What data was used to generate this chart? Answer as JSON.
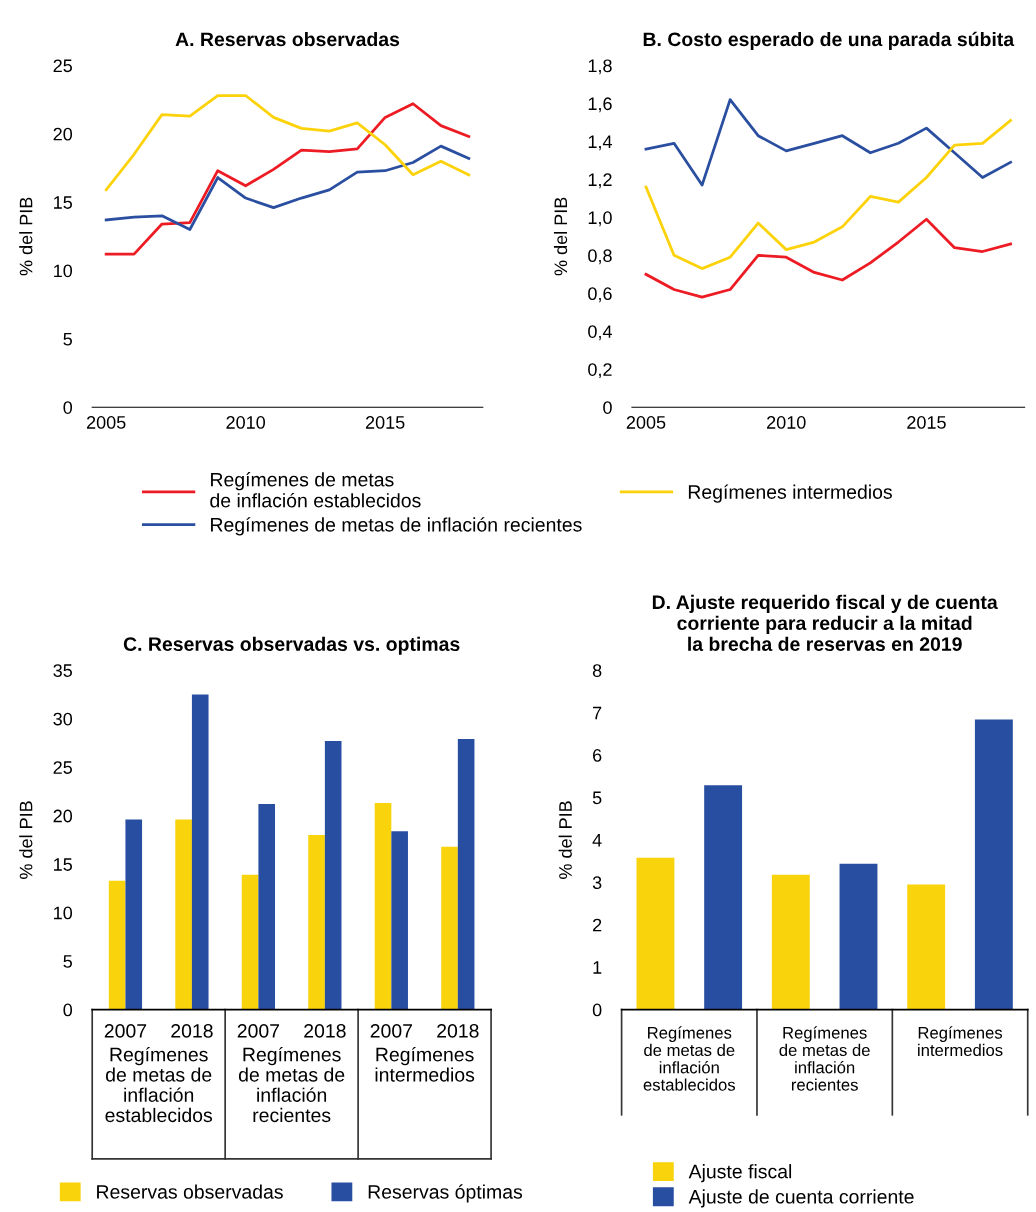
{
  "chart_data": [
    {
      "type": "line",
      "title": "A. Reservas observadas",
      "ylabel": "% del PIB",
      "x": [
        2005,
        2006,
        2007,
        2008,
        2009,
        2010,
        2011,
        2012,
        2013,
        2014,
        2015,
        2016,
        2017,
        2018
      ],
      "xlim": [
        2004.5,
        2018.5
      ],
      "xticks": [
        2005,
        2010,
        2015
      ],
      "ylim": [
        0,
        25
      ],
      "yticks": [
        0,
        5,
        10,
        15,
        20,
        25
      ],
      "grid": false,
      "legend": "bottom",
      "line_style": "solid",
      "marker": "none",
      "series": [
        {
          "name": "Regímenes de metas\nde inflación establecidos",
          "color": "#ed1c24",
          "values": [
            11.2,
            11.2,
            13.4,
            13.5,
            17.3,
            16.2,
            17.4,
            18.8,
            18.7,
            18.9,
            21.2,
            22.2,
            20.6,
            19.8
          ]
        },
        {
          "name": "Regímenes de metas de inflación recientes",
          "color": "#2a4ea0",
          "values": [
            13.7,
            13.9,
            14.0,
            13.0,
            16.8,
            15.3,
            14.6,
            15.3,
            15.9,
            17.2,
            17.3,
            17.9,
            19.1,
            18.2
          ]
        },
        {
          "name": "Regímenes intermedios",
          "color": "#fcd20a",
          "values": [
            15.9,
            18.5,
            21.4,
            21.3,
            22.8,
            22.8,
            21.2,
            20.4,
            20.2,
            20.8,
            19.2,
            17.0,
            18.0,
            17.0
          ]
        }
      ]
    },
    {
      "type": "line",
      "title": "B. Costo esperado de una parada súbita",
      "ylabel": "% del PIB",
      "x": [
        2005,
        2006,
        2007,
        2008,
        2009,
        2010,
        2011,
        2012,
        2013,
        2014,
        2015,
        2016,
        2017,
        2018
      ],
      "xlim": [
        2004.5,
        2018.5
      ],
      "xticks": [
        2005,
        2010,
        2015
      ],
      "ylim": [
        0,
        1.8
      ],
      "yticks": [
        0,
        {
          "value": 0.2,
          "label": "0,2"
        },
        {
          "value": 0.4,
          "label": "0,4"
        },
        {
          "value": 0.6,
          "label": "0,6"
        },
        {
          "value": 0.8,
          "label": "0,8"
        },
        {
          "value": 1.0,
          "label": "1,0"
        },
        {
          "value": 1.2,
          "label": "1,2"
        },
        {
          "value": 1.4,
          "label": "1,4"
        },
        {
          "value": 1.6,
          "label": "1,6"
        },
        {
          "value": 1.8,
          "label": "1,8"
        }
      ],
      "grid": false,
      "line_style": "solid",
      "marker": "none",
      "series": [
        {
          "color": "#ed1c24",
          "values": [
            0.7,
            0.62,
            0.58,
            0.62,
            0.8,
            0.79,
            0.71,
            0.67,
            0.76,
            0.87,
            0.99,
            0.84,
            0.82,
            0.86
          ]
        },
        {
          "color": "#2a4ea0",
          "values": [
            1.36,
            1.39,
            1.17,
            1.62,
            1.43,
            1.35,
            1.39,
            1.43,
            1.34,
            1.39,
            1.47,
            1.34,
            1.21,
            1.29
          ]
        },
        {
          "color": "#fcd20a",
          "values": [
            1.16,
            0.8,
            0.73,
            0.79,
            0.97,
            0.83,
            0.87,
            0.95,
            1.11,
            1.08,
            1.21,
            1.38,
            1.39,
            1.51
          ]
        }
      ]
    },
    {
      "type": "bar",
      "title": "C. Reservas observadas vs. optimas",
      "ylabel": "% del PIB",
      "categories": [
        "2007",
        "2018",
        "2007",
        "2018",
        "2007",
        "2018"
      ],
      "ylim": [
        0,
        35
      ],
      "yticks": [
        0,
        5,
        10,
        15,
        20,
        25,
        30,
        35
      ],
      "grid": false,
      "legend": "bottom",
      "annotations": [
        "Regímenes\nde metas de\ninflación\nestablecidos",
        "Regímenes\nde metas de\ninflación\nrecientes",
        "Regímenes\nintermedios"
      ],
      "series": [
        {
          "name": "Reservas observadas",
          "color": "#f9d30b",
          "values": [
            13.3,
            19.6,
            13.9,
            18.0,
            21.3,
            16.8
          ]
        },
        {
          "name": "Reservas óptimas",
          "color": "#284ea2",
          "values": [
            19.6,
            32.5,
            21.2,
            27.7,
            18.4,
            27.9
          ]
        }
      ]
    },
    {
      "type": "bar",
      "title": "D. Ajuste requerido fiscal y de cuenta\ncorriente para reducir a la mitad\nla brecha de reservas en 2019",
      "ylabel": "% del PIB",
      "categories": [
        "Regímenes\nde metas de\ninflación\nestablecidos",
        "Regímenes\nde metas de\ninflación\nrecientes",
        "Regímenes\nintermedios"
      ],
      "ylim": [
        0,
        8
      ],
      "yticks": [
        0,
        1,
        2,
        3,
        4,
        5,
        6,
        7,
        8
      ],
      "grid": false,
      "legend": "bottom",
      "series": [
        {
          "name": "Ajuste fiscal",
          "color": "#f9d30b",
          "values": [
            3.58,
            3.18,
            2.95
          ]
        },
        {
          "name": "Ajuste de cuenta corriente",
          "color": "#284ea2",
          "values": [
            5.29,
            3.44,
            6.84
          ]
        }
      ]
    }
  ]
}
